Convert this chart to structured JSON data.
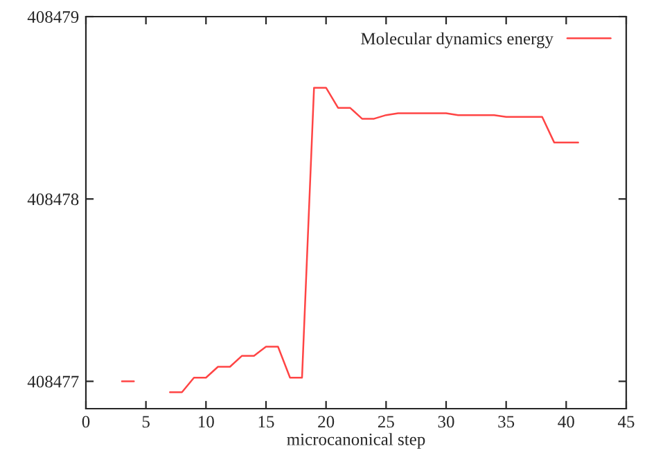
{
  "chart_data": {
    "type": "line",
    "xlabel": "microcanonical step",
    "legend": "top right",
    "grid": false,
    "xlim": [
      0,
      45
    ],
    "xticks": [
      0,
      5,
      10,
      15,
      20,
      25,
      30,
      35,
      40,
      45
    ],
    "ylim": [
      408476.85,
      408479
    ],
    "yticks": [
      408477,
      408478,
      408479
    ],
    "series": [
      {
        "name": "Molecular dynamics energy",
        "color": "#ff4444",
        "x": [
          3,
          4,
          5,
          6,
          7,
          8,
          9,
          10,
          11,
          12,
          13,
          14,
          15,
          16,
          17,
          18,
          19,
          20,
          21,
          22,
          23,
          24,
          25,
          26,
          27,
          28,
          29,
          30,
          31,
          32,
          33,
          34,
          35,
          36,
          37,
          38,
          39,
          40,
          41
        ],
        "values": [
          408477.0,
          408477.0,
          null,
          null,
          408476.94,
          408476.94,
          408477.02,
          408477.02,
          408477.08,
          408477.08,
          408477.14,
          408477.14,
          408477.19,
          408477.19,
          408477.02,
          408477.02,
          408478.61,
          408478.61,
          408478.5,
          408478.5,
          408478.44,
          408478.44,
          408478.46,
          408478.47,
          408478.47,
          408478.47,
          408478.47,
          408478.47,
          408478.46,
          408478.46,
          408478.46,
          408478.46,
          408478.45,
          408478.45,
          408478.45,
          408478.45,
          408478.31,
          408478.31,
          408478.31
        ]
      }
    ]
  }
}
